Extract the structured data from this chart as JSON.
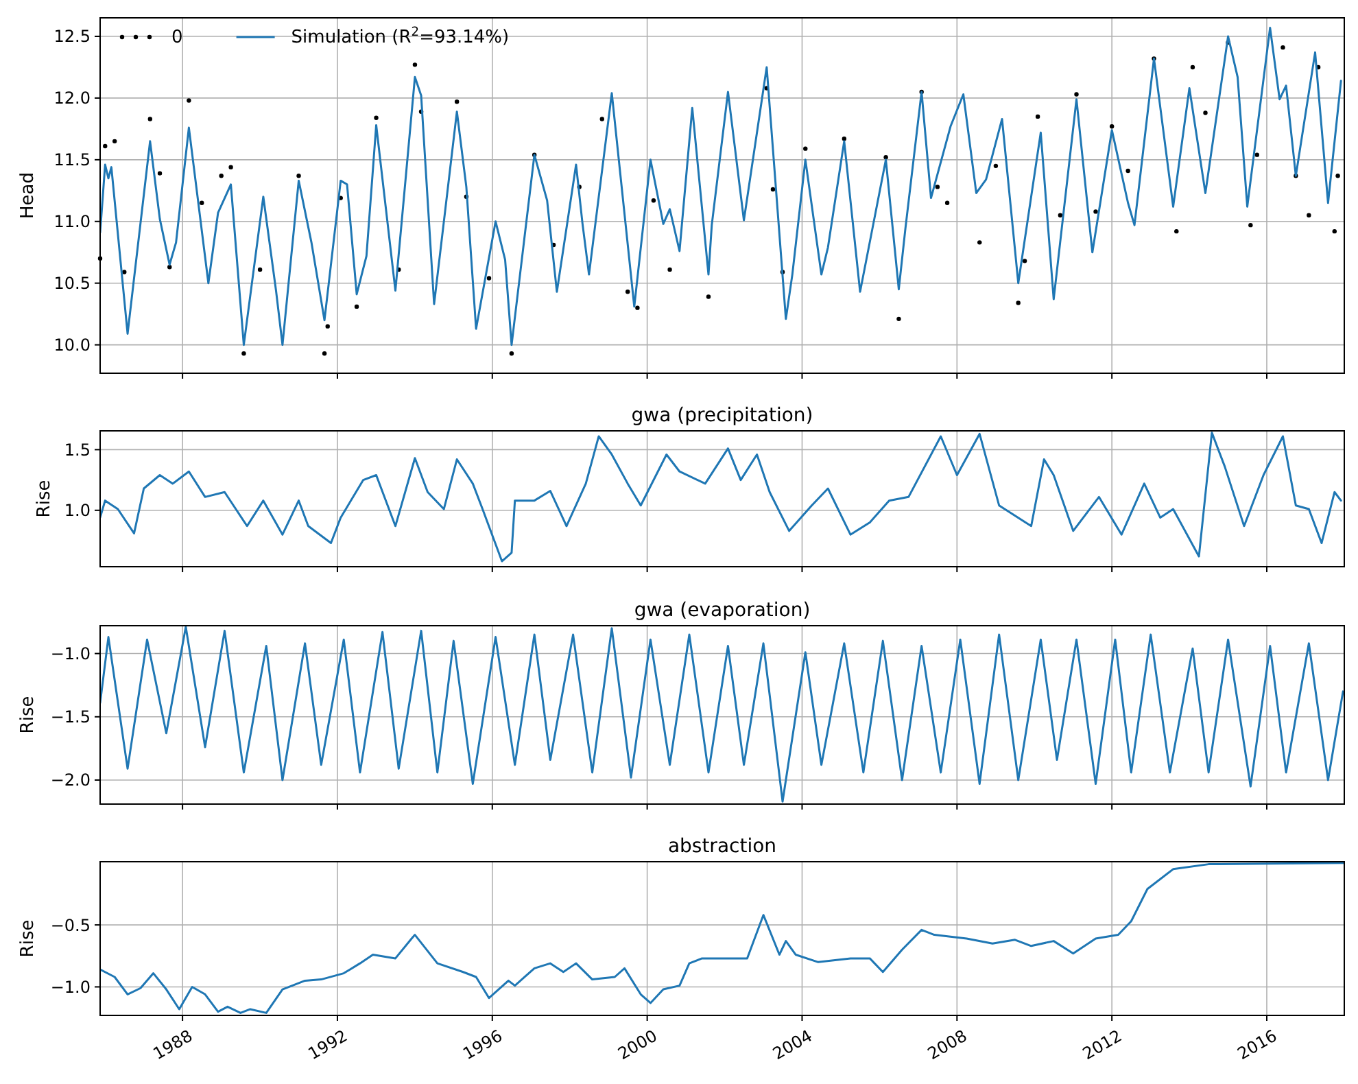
{
  "chart_data": [
    {
      "type": "line",
      "ylabel": "Head",
      "xlim": [
        "1985-11-15",
        "2018-01-01"
      ],
      "xticks": [
        "1988",
        "1992",
        "1996",
        "2000",
        "2004",
        "2008",
        "2012",
        "2016"
      ],
      "ylim": [
        9.77,
        12.65
      ],
      "yticks": [
        {
          "value": 10,
          "label": "10.0"
        },
        10.5,
        {
          "value": 11,
          "label": "11.0"
        },
        11.5,
        {
          "value": 12,
          "label": "12.0"
        },
        12.5
      ],
      "grid": true,
      "legend": "top left",
      "tick_labels": "y",
      "series": [
        {
          "name": "0",
          "type": "scatter",
          "marker": "circle",
          "color": "#000000",
          "x": [
            "1985-11-15",
            "1986-01",
            "1986-04",
            "1986-07",
            "1987-03",
            "1987-06",
            "1987-09",
            "1988-03",
            "1988-07",
            "1989-01",
            "1989-04",
            "1989-08",
            "1990-01",
            "1991-01",
            "1991-09",
            "1991-10",
            "1992-02",
            "1992-07",
            "1993-01",
            "1993-08",
            "1994-01",
            "1994-03",
            "1995-02",
            "1995-05",
            "1995-12",
            "1996-07",
            "1997-02",
            "1997-08",
            "1998-04",
            "1998-11",
            "1999-07",
            "1999-10",
            "2000-03",
            "2000-08",
            "2001-08",
            "2003-02",
            "2003-04",
            "2003-07",
            "2004-02",
            "2005-02",
            "2006-03",
            "2006-07",
            "2007-02",
            "2007-07",
            "2007-10",
            "2008-08",
            "2009-01",
            "2009-08",
            "2009-10",
            "2010-02",
            "2010-09",
            "2011-02",
            "2011-08",
            "2012-01",
            "2012-06",
            "2013-02",
            "2013-09",
            "2014-02",
            "2014-06",
            "2015-01",
            "2015-08",
            "2015-10",
            "2016-06",
            "2016-10",
            "2017-02",
            "2017-05",
            "2017-10",
            "2017-11"
          ],
          "values": [
            10.7,
            11.61,
            11.65,
            10.59,
            11.83,
            11.39,
            10.63,
            11.98,
            11.15,
            11.37,
            11.44,
            9.93,
            10.61,
            11.37,
            9.93,
            10.15,
            11.19,
            10.31,
            11.84,
            10.61,
            12.27,
            11.89,
            11.97,
            11.2,
            10.54,
            9.93,
            11.54,
            10.81,
            11.28,
            11.83,
            10.43,
            10.3,
            11.17,
            10.61,
            10.39,
            12.08,
            11.26,
            10.59,
            11.59,
            11.67,
            11.52,
            10.21,
            12.05,
            11.28,
            11.15,
            10.83,
            11.45,
            10.34,
            10.68,
            11.85,
            11.05,
            12.03,
            11.08,
            11.77,
            11.41,
            12.32,
            10.92,
            12.25,
            11.88,
            12.45,
            10.97,
            11.54,
            12.41,
            11.37,
            11.05,
            12.25,
            10.92,
            11.37
          ]
        },
        {
          "name": "Simulation (R$^{2}$=93.14%)",
          "color": "#1f77b4",
          "x": [
            "1985-11-15",
            "1986-01",
            "1986-02",
            "1986-03",
            "1986-08",
            "1987-03",
            "1987-06",
            "1987-09",
            "1987-11",
            "1988-03",
            "1988-09",
            "1988-12",
            "1989-04",
            "1989-08",
            "1990-02",
            "1990-06",
            "1990-08",
            "1991-01",
            "1991-05",
            "1991-09",
            "1992-02",
            "1992-04",
            "1992-07",
            "1992-10",
            "1993-01",
            "1993-07",
            "1994-01",
            "1994-03",
            "1994-07",
            "1995-02",
            "1995-05",
            "1995-08",
            "1996-02",
            "1996-05",
            "1996-07",
            "1997-02",
            "1997-06",
            "1997-09",
            "1998-03",
            "1998-05",
            "1998-07",
            "1999-02",
            "1999-09",
            "2000-02",
            "2000-06",
            "2000-08",
            "2000-11",
            "2001-03",
            "2001-08",
            "2001-09",
            "2002-02",
            "2002-07",
            "2003-02",
            "2003-08",
            "2003-10",
            "2004-02",
            "2004-07",
            "2004-09",
            "2005-02",
            "2005-07",
            "2006-03",
            "2006-07",
            "2006-09",
            "2007-02",
            "2007-05",
            "2007-11",
            "2008-03",
            "2008-07",
            "2008-10",
            "2009-03",
            "2009-08",
            "2010-03",
            "2010-07",
            "2011-02",
            "2011-07",
            "2012-01",
            "2012-06",
            "2012-08",
            "2013-02",
            "2013-08",
            "2014-01",
            "2014-06",
            "2015-01",
            "2015-04",
            "2015-07",
            "2016-02",
            "2016-05",
            "2016-07",
            "2016-10",
            "2017-04",
            "2017-08",
            "2017-12"
          ],
          "values": [
            10.91,
            11.46,
            11.35,
            11.44,
            10.09,
            11.65,
            11.02,
            10.65,
            10.83,
            11.76,
            10.5,
            11.07,
            11.3,
            10.0,
            11.2,
            10.44,
            10.0,
            11.33,
            10.83,
            10.2,
            11.33,
            11.3,
            10.41,
            10.72,
            11.78,
            10.44,
            12.17,
            12.02,
            10.33,
            11.89,
            11.28,
            10.13,
            11.0,
            10.69,
            10.0,
            11.54,
            11.17,
            10.43,
            11.46,
            10.98,
            10.57,
            12.04,
            10.31,
            11.5,
            10.98,
            11.1,
            10.76,
            11.92,
            10.57,
            10.97,
            12.05,
            11.01,
            12.25,
            10.21,
            10.57,
            11.5,
            10.57,
            10.79,
            11.65,
            10.43,
            11.5,
            10.45,
            10.94,
            12.05,
            11.19,
            11.77,
            12.03,
            11.23,
            11.34,
            11.83,
            10.5,
            11.72,
            10.37,
            11.99,
            10.75,
            11.74,
            11.15,
            10.97,
            12.32,
            11.12,
            12.08,
            11.23,
            12.5,
            12.17,
            11.12,
            12.57,
            11.99,
            12.1,
            11.37,
            12.37,
            11.15,
            12.14
          ]
        }
      ]
    },
    {
      "type": "line",
      "title": "gwa (precipitation)",
      "ylabel": "Rise",
      "xlim": [
        "1985-11-15",
        "2018-01-01"
      ],
      "xticks": [
        "1988",
        "1992",
        "1996",
        "2000",
        "2004",
        "2008",
        "2012",
        "2016"
      ],
      "ylim": [
        0.535,
        1.655
      ],
      "yticks": [
        {
          "value": 1,
          "label": "1.0"
        },
        1.5
      ],
      "grid": true,
      "tick_labels": "y",
      "series": [
        {
          "color": "#1f77b4",
          "x": [
            "1985-11-15",
            "1986-01",
            "1986-05",
            "1986-10",
            "1987-01",
            "1987-06",
            "1987-10",
            "1988-03",
            "1988-08",
            "1989-02",
            "1989-09",
            "1990-02",
            "1990-08",
            "1991-01",
            "1991-04",
            "1991-11",
            "1992-02",
            "1992-09",
            "1993-01",
            "1993-07",
            "1994-01",
            "1994-05",
            "1994-10",
            "1995-02",
            "1995-07",
            "1995-10",
            "1996-04",
            "1996-07",
            "1996-08",
            "1997-02",
            "1997-07",
            "1997-12",
            "1998-06",
            "1998-10",
            "1999-02",
            "1999-07",
            "1999-11",
            "2000-07",
            "2000-11",
            "2001-07",
            "2002-02",
            "2002-06",
            "2002-11",
            "2003-03",
            "2003-09",
            "2004-04",
            "2004-09",
            "2005-04",
            "2005-10",
            "2006-04",
            "2006-10",
            "2007-08",
            "2008-01",
            "2008-08",
            "2009-02",
            "2009-12",
            "2010-04",
            "2010-07",
            "2011-01",
            "2011-09",
            "2012-04",
            "2012-11",
            "2013-04",
            "2013-08",
            "2014-04",
            "2014-08",
            "2014-12",
            "2015-06",
            "2015-12",
            "2016-06",
            "2016-10",
            "2017-02",
            "2017-06",
            "2017-10",
            "2017-12"
          ],
          "values": [
            0.94,
            1.08,
            1.01,
            0.81,
            1.18,
            1.29,
            1.22,
            1.32,
            1.11,
            1.15,
            0.87,
            1.08,
            0.8,
            1.08,
            0.87,
            0.73,
            0.94,
            1.25,
            1.29,
            0.87,
            1.43,
            1.15,
            1.01,
            1.42,
            1.22,
            1.01,
            0.58,
            0.65,
            1.08,
            1.08,
            1.16,
            0.87,
            1.22,
            1.61,
            1.46,
            1.22,
            1.04,
            1.46,
            1.32,
            1.22,
            1.51,
            1.25,
            1.46,
            1.15,
            0.83,
            1.04,
            1.18,
            0.8,
            0.9,
            1.08,
            1.11,
            1.61,
            1.29,
            1.63,
            1.04,
            0.87,
            1.42,
            1.29,
            0.83,
            1.11,
            0.8,
            1.22,
            0.94,
            1.01,
            0.62,
            1.64,
            1.36,
            0.87,
            1.29,
            1.61,
            1.04,
            1.01,
            0.73,
            1.15,
            1.08
          ]
        }
      ]
    },
    {
      "type": "line",
      "title": "gwa (evaporation)",
      "ylabel": "Rise",
      "xlim": [
        "1985-11-15",
        "2018-01-01"
      ],
      "xticks": [
        "1988",
        "1992",
        "1996",
        "2000",
        "2004",
        "2008",
        "2012",
        "2016"
      ],
      "ylim": [
        -2.19,
        -0.78
      ],
      "yticks": [
        {
          "value": -2,
          "label": "−2.0"
        },
        {
          "value": -1.5,
          "label": "−1.5"
        },
        {
          "value": -1,
          "label": "−1.0"
        }
      ],
      "grid": true,
      "tick_labels": "y",
      "series": [
        {
          "color": "#1f77b4",
          "x": [
            "1985-11-15",
            "1986-02",
            "1986-08",
            "1987-02",
            "1987-08",
            "1988-02",
            "1988-08",
            "1989-02",
            "1989-08",
            "1990-03",
            "1990-08",
            "1991-03",
            "1991-08",
            "1992-03",
            "1992-08",
            "1993-03",
            "1993-08",
            "1994-03",
            "1994-08",
            "1995-01",
            "1995-07",
            "1996-02",
            "1996-08",
            "1997-02",
            "1997-07",
            "1998-02",
            "1998-08",
            "1999-02",
            "1999-08",
            "2000-02",
            "2000-08",
            "2001-02",
            "2001-08",
            "2002-02",
            "2002-07",
            "2003-01",
            "2003-07",
            "2004-02",
            "2004-07",
            "2005-02",
            "2005-08",
            "2006-02",
            "2006-08",
            "2007-02",
            "2007-08",
            "2008-02",
            "2008-08",
            "2009-02",
            "2009-08",
            "2010-03",
            "2010-08",
            "2011-02",
            "2011-08",
            "2012-02",
            "2012-07",
            "2013-01",
            "2013-07",
            "2014-02",
            "2014-07",
            "2015-01",
            "2015-08",
            "2016-02",
            "2016-07",
            "2017-02",
            "2017-08",
            "2017-12-20"
          ],
          "values": [
            -1.39,
            -0.87,
            -1.91,
            -0.89,
            -1.63,
            -0.79,
            -1.74,
            -0.82,
            -1.94,
            -0.94,
            -2.0,
            -0.92,
            -1.88,
            -0.89,
            -1.94,
            -0.83,
            -1.91,
            -0.82,
            -1.94,
            -0.9,
            -2.03,
            -0.87,
            -1.88,
            -0.85,
            -1.84,
            -0.85,
            -1.94,
            -0.8,
            -1.98,
            -0.89,
            -1.88,
            -0.85,
            -1.94,
            -0.94,
            -1.88,
            -0.92,
            -2.17,
            -0.99,
            -1.88,
            -0.92,
            -1.94,
            -0.9,
            -2.0,
            -0.94,
            -1.94,
            -0.89,
            -2.03,
            -0.85,
            -2.0,
            -0.89,
            -1.84,
            -0.89,
            -2.03,
            -0.89,
            -1.94,
            -0.85,
            -1.94,
            -0.96,
            -1.94,
            -0.89,
            -2.05,
            -0.94,
            -1.94,
            -0.92,
            -2.0,
            -1.3
          ]
        }
      ]
    },
    {
      "type": "line",
      "title": "abstraction",
      "ylabel": "Rise",
      "xlim": [
        "1985-11-15",
        "2018-01-01"
      ],
      "xticks": [
        "1988",
        "1992",
        "1996",
        "2000",
        "2004",
        "2008",
        "2012",
        "2016"
      ],
      "ylim": [
        -1.23,
        0.01
      ],
      "yticks": [
        {
          "value": -1,
          "label": "−1.0"
        },
        {
          "value": -0.5,
          "label": "−0.5"
        }
      ],
      "grid": true,
      "series": [
        {
          "color": "#1f77b4",
          "x": [
            "1985-11-15",
            "1986-04",
            "1986-08",
            "1986-12",
            "1987-04",
            "1987-08",
            "1987-12",
            "1988-04",
            "1988-08",
            "1988-12",
            "1989-03",
            "1989-07",
            "1989-10",
            "1990-03",
            "1990-08",
            "1991-03",
            "1991-08",
            "1992-03",
            "1992-08",
            "1992-12",
            "1993-07",
            "1993-12",
            "1994-01",
            "1994-08",
            "1995-04",
            "1995-08",
            "1995-12",
            "1996-06",
            "1996-08",
            "1997-02",
            "1997-07",
            "1997-11",
            "1998-03",
            "1998-08",
            "1999-03",
            "1999-06",
            "1999-11",
            "2000-02",
            "2000-06",
            "2000-11",
            "2001-02",
            "2001-06",
            "2002-01",
            "2002-08",
            "2003-01",
            "2003-06",
            "2003-08",
            "2003-11",
            "2004-06",
            "2005-04",
            "2005-10",
            "2006-02",
            "2006-08",
            "2007-02",
            "2007-06",
            "2008-04",
            "2008-12",
            "2009-07",
            "2009-12",
            "2010-07",
            "2011-01",
            "2011-08",
            "2012-03",
            "2012-07",
            "2012-12",
            "2013-08",
            "2014-07",
            "2018-01"
          ],
          "values": [
            -0.86,
            -0.92,
            -1.06,
            -1.01,
            -0.89,
            -1.02,
            -1.18,
            -1.0,
            -1.06,
            -1.2,
            -1.16,
            -1.21,
            -1.18,
            -1.21,
            -1.02,
            -0.95,
            -0.94,
            -0.89,
            -0.81,
            -0.74,
            -0.77,
            -0.61,
            -0.58,
            -0.81,
            -0.88,
            -0.92,
            -1.09,
            -0.95,
            -0.99,
            -0.85,
            -0.81,
            -0.88,
            -0.81,
            -0.94,
            -0.92,
            -0.85,
            -1.06,
            -1.13,
            -1.02,
            -0.99,
            -0.81,
            -0.77,
            -0.77,
            -0.77,
            -0.42,
            -0.74,
            -0.63,
            -0.74,
            -0.8,
            -0.77,
            -0.77,
            -0.88,
            -0.7,
            -0.54,
            -0.58,
            -0.61,
            -0.65,
            -0.62,
            -0.67,
            -0.63,
            -0.73,
            -0.61,
            -0.58,
            -0.47,
            -0.21,
            -0.05,
            -0.01,
            0.0
          ]
        }
      ]
    }
  ]
}
